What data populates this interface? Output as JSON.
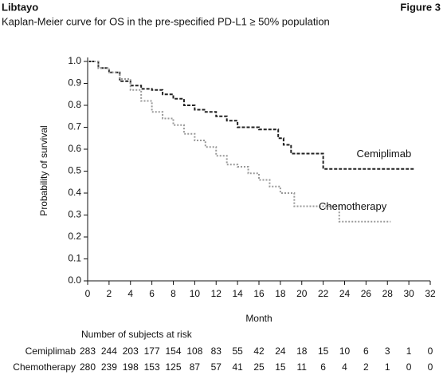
{
  "header": {
    "brand": "Libtayo",
    "figure": "Figure 3"
  },
  "chart_data": {
    "type": "km",
    "subtitle": "Kaplan-Meier curve for OS in the pre-specified PD-L1 ≥ 50% population",
    "x_label": "Month",
    "y_label": "Probability of survival",
    "xlim": [
      0,
      32
    ],
    "xticks": [
      0,
      2,
      4,
      6,
      8,
      10,
      12,
      14,
      16,
      18,
      20,
      22,
      24,
      26,
      28,
      30,
      32
    ],
    "ylim": [
      0,
      1
    ],
    "yticks": [
      {
        "value": 0,
        "label": "0.0"
      },
      0.1,
      0.2,
      0.3,
      0.4,
      0.5,
      0.6,
      0.7,
      0.8,
      0.9,
      {
        "value": 1,
        "label": "1.0"
      }
    ],
    "series": [
      {
        "name": "Cemiplimab",
        "color": "#222222",
        "dash": "4 2",
        "x": [
          0,
          1,
          2,
          3,
          4,
          5,
          6,
          7,
          8,
          9,
          10,
          11,
          12,
          13,
          14,
          16,
          17.8,
          18.3,
          19,
          22,
          24,
          26,
          28,
          30.6
        ],
        "values": [
          1.0,
          0.97,
          0.95,
          0.91,
          0.89,
          0.875,
          0.87,
          0.85,
          0.83,
          0.8,
          0.78,
          0.77,
          0.75,
          0.73,
          0.7,
          0.69,
          0.65,
          0.62,
          0.58,
          0.51,
          0.51,
          0.51,
          0.51,
          0.51
        ]
      },
      {
        "name": "Chemotherapy",
        "color": "#999999",
        "dash": "2 2",
        "x": [
          0,
          1,
          2,
          3,
          4,
          5,
          6,
          7,
          8,
          9,
          10,
          11,
          12,
          13,
          14,
          15,
          16,
          17,
          18,
          19.3,
          21,
          23.5,
          26,
          28.3
        ],
        "values": [
          1.0,
          0.97,
          0.95,
          0.92,
          0.87,
          0.82,
          0.77,
          0.74,
          0.71,
          0.67,
          0.64,
          0.61,
          0.57,
          0.53,
          0.52,
          0.49,
          0.46,
          0.43,
          0.4,
          0.34,
          0.34,
          0.27,
          0.27,
          0.27
        ]
      }
    ],
    "risk_table": {
      "title": "Number of subjects at risk",
      "rows": [
        [
          283,
          244,
          203,
          177,
          154,
          108,
          83,
          55,
          42,
          24,
          18,
          15,
          10,
          6,
          3,
          1,
          0
        ],
        [
          280,
          239,
          198,
          153,
          125,
          87,
          57,
          41,
          25,
          15,
          11,
          6,
          4,
          2,
          1,
          0,
          0
        ]
      ]
    }
  }
}
